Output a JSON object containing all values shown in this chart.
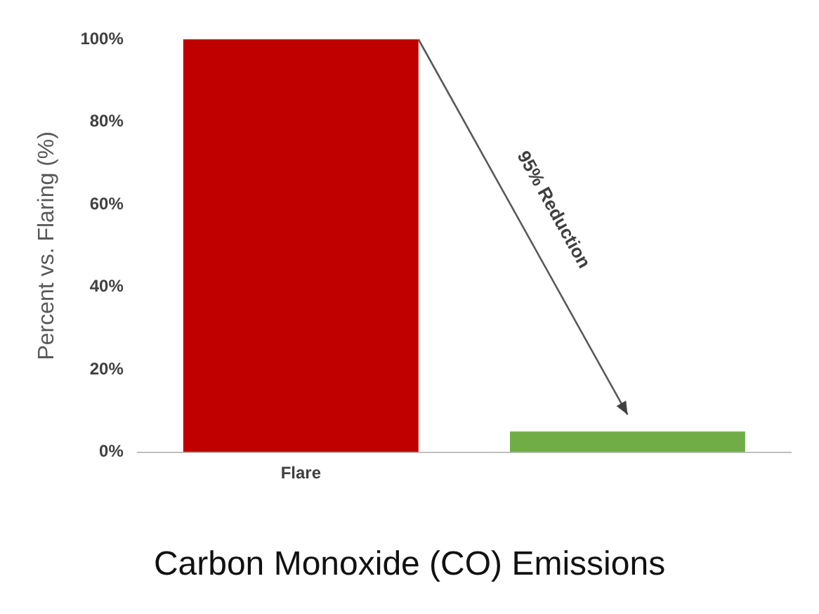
{
  "chart_data": {
    "type": "bar",
    "title": "Carbon Monoxide (CO) Emissions",
    "ylabel": "Percent vs. Flaring (%)",
    "categories": [
      "Flare",
      null
    ],
    "values": [
      100,
      5
    ],
    "colors": [
      "#c00000",
      "#70ad47"
    ],
    "ylim": [
      0,
      100
    ],
    "yticks": [
      {
        "value": 0,
        "label": "0%"
      },
      {
        "value": 20,
        "label": "20%"
      },
      {
        "value": 40,
        "label": "40%"
      },
      {
        "value": 60,
        "label": "60%"
      },
      {
        "value": 80,
        "label": "80%"
      },
      {
        "value": 100,
        "label": "100%"
      }
    ],
    "grid": false,
    "legend": false,
    "annotations": [
      "95% Reduction"
    ]
  }
}
